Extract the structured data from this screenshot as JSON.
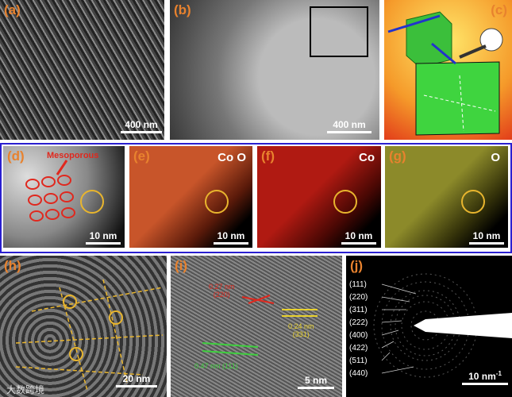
{
  "panels": [
    {
      "label": "(a)",
      "scale": "400 nm"
    },
    {
      "label": "(b)",
      "scale": "400 nm"
    },
    {
      "label": "(c)"
    },
    {
      "label": "(d)",
      "annotation": "Mesoporous",
      "scale": "10 nm"
    },
    {
      "label": "(e)",
      "element": "Co  O",
      "scale": "10 nm"
    },
    {
      "label": "(f)",
      "element": "Co",
      "scale": "10 nm"
    },
    {
      "label": "(g)",
      "element": "O",
      "scale": "10 nm"
    },
    {
      "label": "(h)",
      "scale": "20 nm",
      "watermark": "大数跨境"
    },
    {
      "label": "(i)",
      "scale": "5 nm",
      "annotations": [
        {
          "spacing": "0.27 nm",
          "plane": "(220)"
        },
        {
          "spacing": "0.24 nm",
          "plane": "(331)"
        },
        {
          "spacing": "0.47 nm",
          "plane": "(111)"
        }
      ]
    },
    {
      "label": "(j)",
      "scale": "10 nm",
      "scale_exponent": "-1",
      "rings": [
        "(111)",
        "(220)",
        "(311)",
        "(222)",
        "(400)",
        "(422)",
        "(511)",
        "(440)"
      ]
    }
  ]
}
